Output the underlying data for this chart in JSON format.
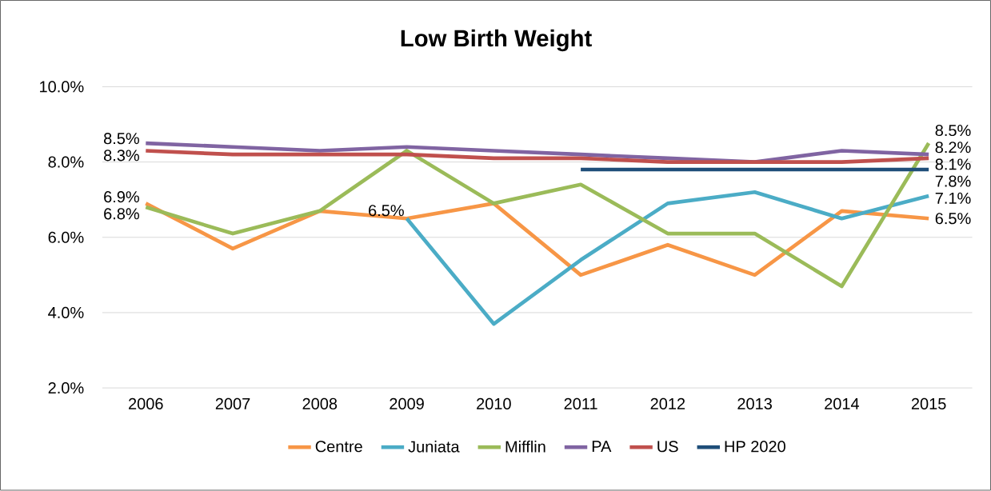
{
  "chart_data": {
    "type": "line",
    "title": "Low Birth Weight",
    "categories": [
      "2006",
      "2007",
      "2008",
      "2009",
      "2010",
      "2011",
      "2012",
      "2013",
      "2014",
      "2015"
    ],
    "series": [
      {
        "name": "Centre",
        "color": "#f79646",
        "values": [
          6.9,
          5.7,
          6.7,
          6.5,
          6.9,
          5.0,
          5.8,
          5.0,
          6.7,
          6.5
        ],
        "value_labels": [
          "6.9%",
          null,
          null,
          null,
          null,
          null,
          null,
          null,
          null,
          "6.5%"
        ]
      },
      {
        "name": "Juniata",
        "color": "#4bacc6",
        "values": [
          null,
          null,
          null,
          6.5,
          3.7,
          5.4,
          6.9,
          7.2,
          6.5,
          7.1
        ],
        "value_labels": [
          null,
          null,
          null,
          "6.5%",
          null,
          null,
          null,
          null,
          null,
          "7.1%"
        ]
      },
      {
        "name": "Mifflin",
        "color": "#9bbb59",
        "values": [
          6.8,
          6.1,
          6.7,
          8.3,
          6.9,
          7.4,
          6.1,
          6.1,
          4.7,
          8.5
        ],
        "value_labels": [
          "6.8%",
          null,
          null,
          null,
          null,
          null,
          null,
          null,
          null,
          "8.5%"
        ]
      },
      {
        "name": "PA",
        "color": "#8064a2",
        "values": [
          8.5,
          8.4,
          8.3,
          8.4,
          8.3,
          8.2,
          8.1,
          8.0,
          8.3,
          8.2
        ],
        "value_labels": [
          "8.5%",
          null,
          null,
          null,
          null,
          null,
          null,
          null,
          null,
          "8.2%"
        ]
      },
      {
        "name": "US",
        "color": "#c0504d",
        "values": [
          8.3,
          8.2,
          8.2,
          8.2,
          8.1,
          8.1,
          8.0,
          8.0,
          8.0,
          8.1
        ],
        "value_labels": [
          "8.3%",
          null,
          null,
          null,
          null,
          null,
          null,
          null,
          null,
          "8.1%"
        ]
      },
      {
        "name": "HP 2020",
        "color": "#1f4e79",
        "values": [
          null,
          null,
          null,
          null,
          null,
          7.8,
          7.8,
          7.8,
          7.8,
          7.8
        ],
        "value_labels": [
          null,
          null,
          null,
          null,
          null,
          null,
          null,
          null,
          null,
          "7.8%"
        ]
      }
    ],
    "ylim": [
      2,
      10
    ],
    "yticks": [
      {
        "value": 2,
        "label": "2.0%"
      },
      {
        "value": 4,
        "label": "4.0%"
      },
      {
        "value": 6,
        "label": "6.0%"
      },
      {
        "value": 8,
        "label": "8.0%"
      },
      {
        "value": 10,
        "label": "10.0%"
      }
    ],
    "grid": "y",
    "legend": "bottom",
    "marker": "none",
    "line_style": "solid"
  }
}
